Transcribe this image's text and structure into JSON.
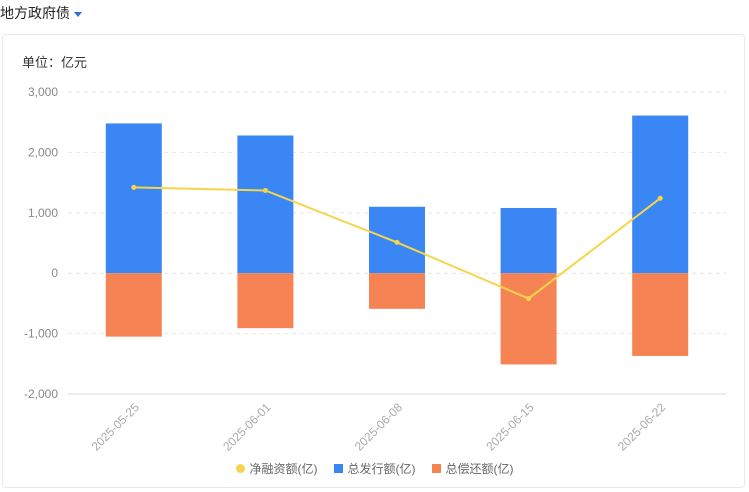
{
  "header": {
    "title": "地方政府债"
  },
  "chart_data": {
    "type": "bar",
    "unit_label": "单位：亿元",
    "categories": [
      "2025-05-25",
      "2025-06-01",
      "2025-06-08",
      "2025-06-15",
      "2025-06-22"
    ],
    "yticks": [
      "3,000",
      "2,000",
      "1,000",
      "0",
      "-1,000",
      "-2,000"
    ],
    "ylim": [
      -2000,
      3000
    ],
    "grid": true,
    "legend_position": "bottom-center",
    "series": [
      {
        "name": "净融资额(亿)",
        "kind": "line",
        "color": "#f7d54a",
        "values": [
          1420,
          1370,
          510,
          -420,
          1240
        ]
      },
      {
        "name": "总发行额(亿)",
        "kind": "bar",
        "color": "#3a86f5",
        "values": [
          2480,
          2280,
          1100,
          1080,
          2610
        ]
      },
      {
        "name": "总偿还额(亿)",
        "kind": "bar",
        "color": "#f68353",
        "values": [
          -1050,
          -910,
          -590,
          -1510,
          -1370
        ]
      }
    ]
  }
}
